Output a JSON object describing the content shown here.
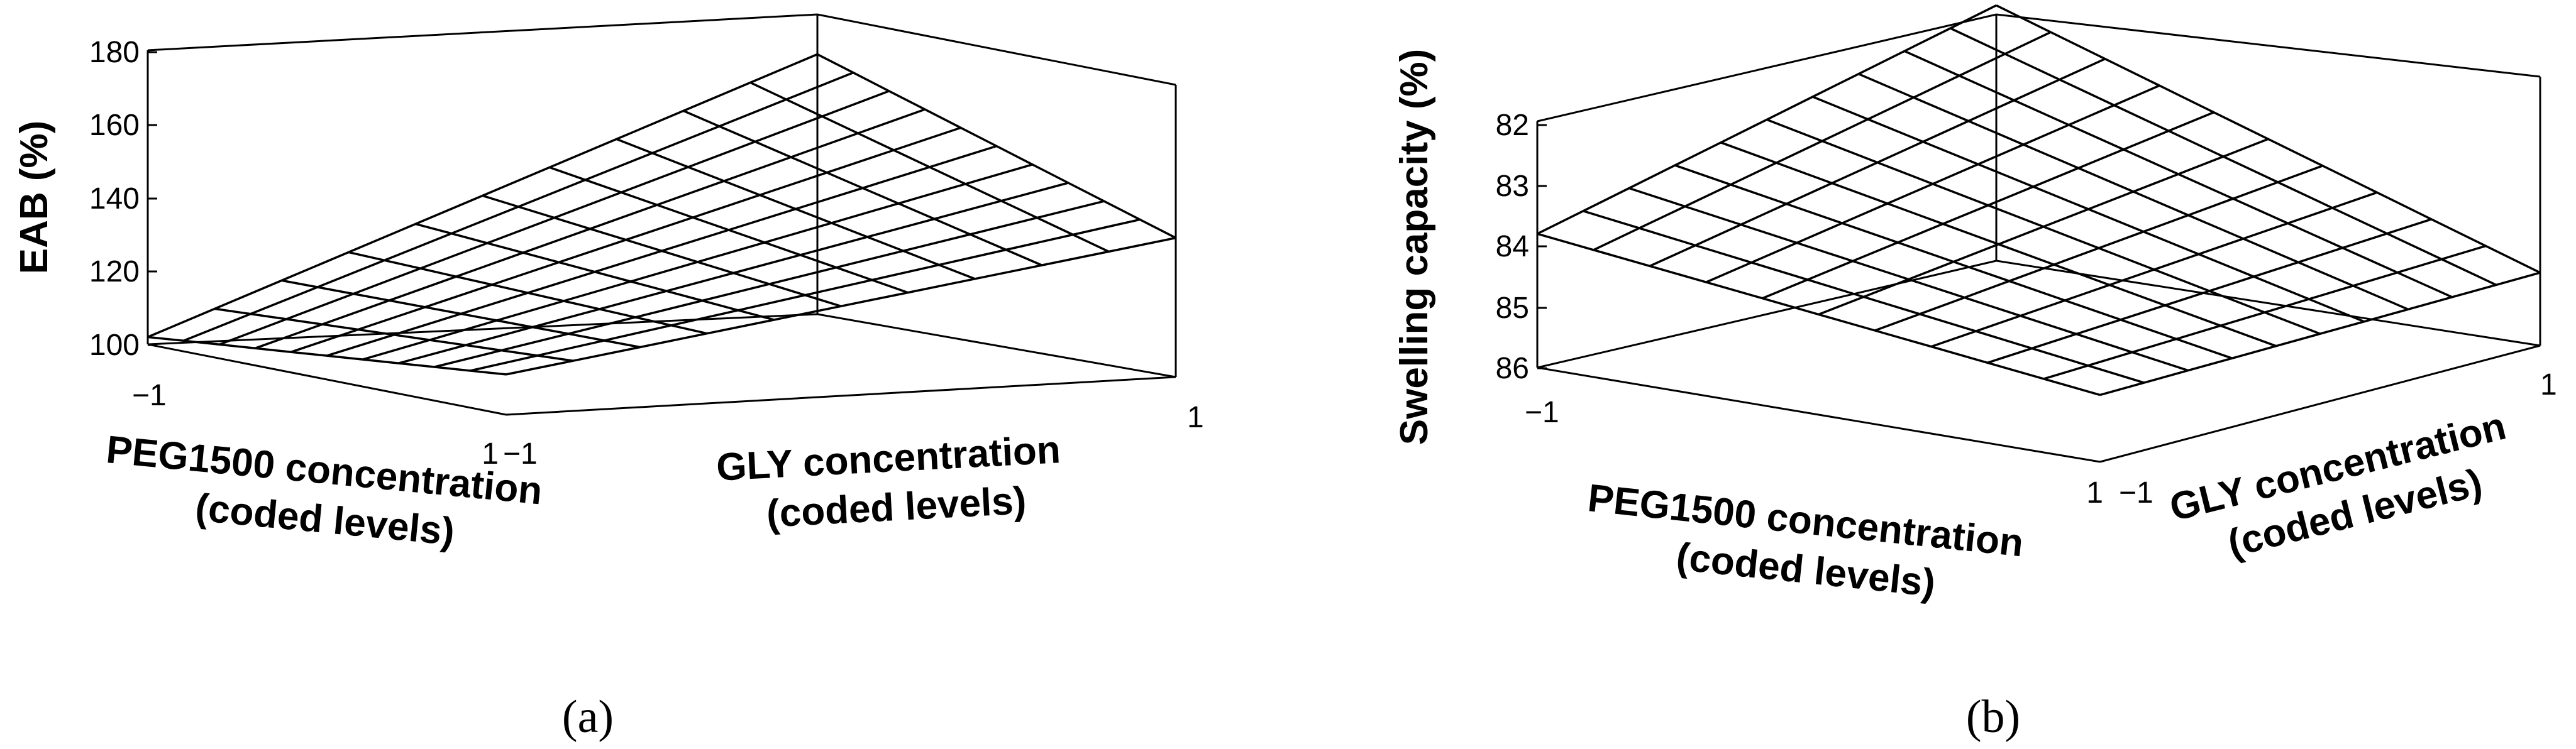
{
  "chart_data": [
    {
      "type": "surface",
      "panel": "(a)",
      "zlabel": "EAB (%)",
      "xlabel": "PEG1500 concentration (coded levels)",
      "ylabel": "GLY concentration (coded levels)",
      "z_ticks": [
        "100",
        "120",
        "140",
        "160",
        "180"
      ],
      "x_ticks": [
        "−1",
        "1"
      ],
      "y_ticks": [
        "−1",
        "1"
      ],
      "zlim": [
        100,
        180
      ],
      "xlim": [
        -1,
        1
      ],
      "ylim": [
        -1,
        1
      ],
      "grid_lines": 10,
      "corners": [
        {
          "x": -1,
          "y": -1,
          "z": 102
        },
        {
          "x": 1,
          "y": -1,
          "z": 111
        },
        {
          "x": 1,
          "y": 1,
          "z": 138
        },
        {
          "x": -1,
          "y": 1,
          "z": 171
        }
      ]
    },
    {
      "type": "surface",
      "panel": "(b)",
      "zlabel": "Swelling capacity (%)",
      "xlabel": "PEG1500 concentration (coded levels)",
      "ylabel": "GLY concentration (coded levels)",
      "z_ticks": [
        "82",
        "83",
        "84",
        "85",
        "86"
      ],
      "x_ticks": [
        "−1",
        "1"
      ],
      "y_ticks": [
        "−1",
        "1"
      ],
      "zlim": [
        86,
        82
      ],
      "z_reversed": true,
      "xlim": [
        -1,
        1
      ],
      "ylim": [
        -1,
        1
      ],
      "grid_lines": 10,
      "corners": [
        {
          "x": -1,
          "y": -1,
          "z": 83.8
        },
        {
          "x": 1,
          "y": -1,
          "z": 84.9
        },
        {
          "x": 1,
          "y": 1,
          "z": 84.8
        },
        {
          "x": -1,
          "y": 1,
          "z": 81.8
        }
      ]
    }
  ]
}
